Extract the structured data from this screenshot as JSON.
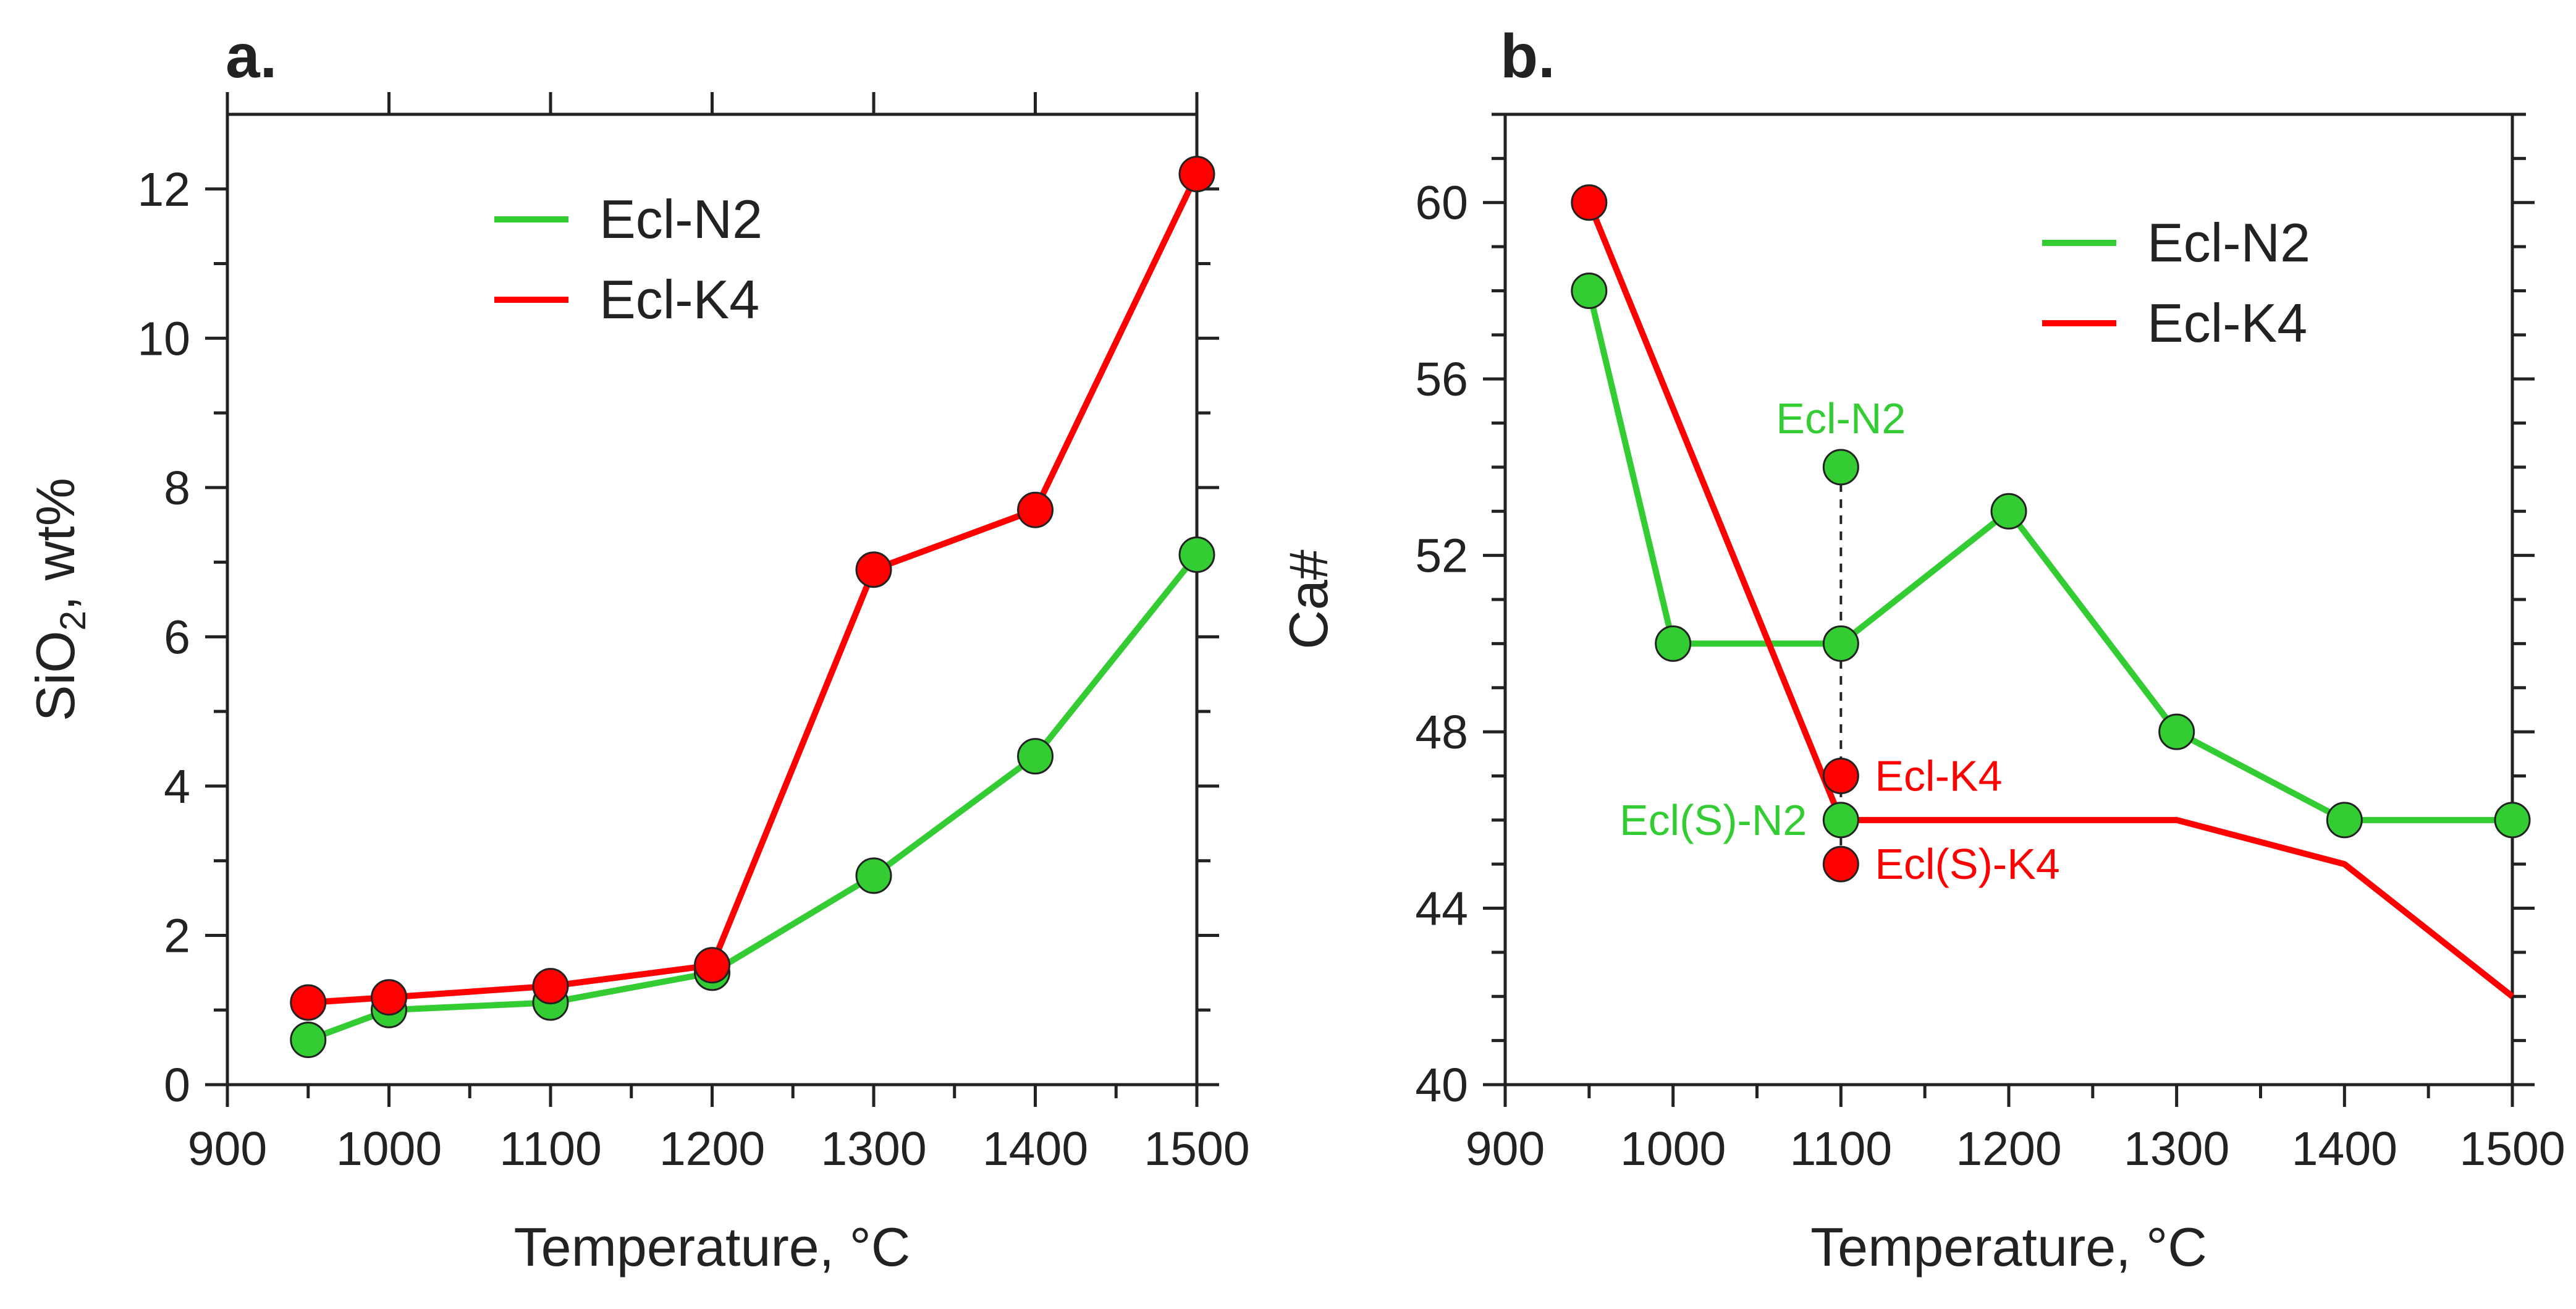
{
  "colors": {
    "ecl_n2": "#33cc33",
    "ecl_k4": "#ff0000",
    "axis": "#222222"
  },
  "chart_data": [
    {
      "type": "line",
      "panel_label": "a.",
      "xlabel": "Temperature, °C",
      "ylabel": {
        "main": "SiO",
        "sub": "2",
        "rest": ", wt%"
      },
      "xlim": [
        900,
        1500
      ],
      "ylim": [
        0,
        13
      ],
      "xticks": [
        900,
        1000,
        1100,
        1200,
        1300,
        1400,
        1500
      ],
      "yticks": [
        0,
        2,
        4,
        6,
        8,
        10,
        12
      ],
      "xticks_minor": [
        950,
        1050,
        1150,
        1250,
        1350,
        1450
      ],
      "yticks_minor": [
        1,
        3,
        5,
        7,
        9,
        11
      ],
      "legend": {
        "position": "upper-center"
      },
      "series": [
        {
          "name": "Ecl-N2",
          "color": "#33cc33",
          "x": [
            950,
            1000,
            1100,
            1200,
            1300,
            1400,
            1500
          ],
          "y": [
            0.6,
            1.0,
            1.1,
            1.5,
            2.8,
            4.4,
            7.1
          ]
        },
        {
          "name": "Ecl-K4",
          "color": "#ff0000",
          "x": [
            950,
            1000,
            1100,
            1200,
            1300,
            1400,
            1500
          ],
          "y": [
            1.1,
            1.17,
            1.32,
            1.6,
            6.9,
            7.7,
            12.2
          ]
        }
      ]
    },
    {
      "type": "line",
      "panel_label": "b.",
      "xlabel": "Temperature, °C",
      "ylabel": "Ca#",
      "xlim": [
        900,
        1500
      ],
      "ylim": [
        40,
        62
      ],
      "xticks": [
        900,
        1000,
        1100,
        1200,
        1300,
        1400,
        1500
      ],
      "yticks": [
        40,
        44,
        48,
        52,
        56,
        60
      ],
      "xticks_minor": [
        950,
        1050,
        1150,
        1250,
        1350,
        1450
      ],
      "yticks_minor": [
        41,
        42,
        43,
        45,
        46,
        47,
        49,
        50,
        51,
        53,
        54,
        55,
        57,
        58,
        59,
        61,
        62
      ],
      "legend": {
        "position": "upper-right"
      },
      "series": [
        {
          "name": "Ecl-N2",
          "color": "#33cc33",
          "x": [
            950,
            1000,
            1100,
            1200,
            1300,
            1400,
            1500
          ],
          "y": [
            58,
            50,
            50,
            53,
            48,
            46,
            46
          ],
          "markers": true
        },
        {
          "name": "Ecl-K4",
          "color": "#ff0000",
          "x": [
            950,
            1100,
            1300,
            1400,
            1500
          ],
          "y": [
            60,
            46,
            46,
            45,
            42
          ],
          "marker_points": [
            {
              "x": 950,
              "y": 60
            }
          ]
        }
      ],
      "extra_points": [
        {
          "label": "Ecl-N2",
          "x": 1100,
          "y": 54,
          "color": "#33cc33",
          "label_position": "above"
        },
        {
          "label": "Ecl-K4",
          "x": 1100,
          "y": 47,
          "color": "#ff0000",
          "label_position": "right"
        },
        {
          "label": "Ecl(S)-N2",
          "x": 1100,
          "y": 46,
          "color": "#33cc33",
          "label_position": "left"
        },
        {
          "label": "Ecl(S)-K4",
          "x": 1100,
          "y": 45,
          "color": "#ff0000",
          "label_position": "right"
        }
      ],
      "dashed_line": {
        "x": 1100,
        "y_from": 45,
        "y_to": 54
      }
    }
  ]
}
